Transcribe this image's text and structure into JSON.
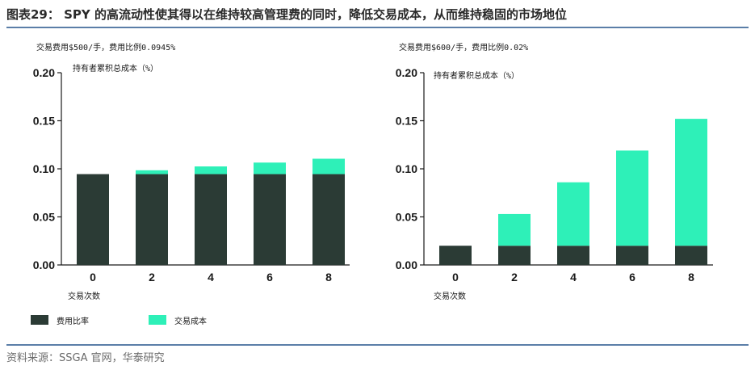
{
  "figure": {
    "title": "图表29： SPY 的高流动性使其得以在维持较高管理费的同时，降低交易成本，从而维持稳固的市场地位",
    "source": "资料来源：SSGA 官网，华泰研究"
  },
  "colors": {
    "fee": "#2b3b35",
    "cost": "#2ef0b8",
    "axis": "#1a1a1a",
    "rule": "#5b7ea8"
  },
  "legend": {
    "fee_label": "费用比率",
    "cost_label": "交易成本"
  },
  "chart_data": [
    {
      "type": "bar",
      "subtitle": "交易费用$500/手，费用比例0.0945%",
      "ylabel": "持有者累积总成本（%）",
      "xlabel": "交易次数",
      "categories": [
        "0",
        "2",
        "4",
        "6",
        "8"
      ],
      "ylim": [
        0,
        0.2
      ],
      "yticks": [
        "0.00",
        "0.05",
        "0.10",
        "0.15",
        "0.20"
      ],
      "stacked": true,
      "series": [
        {
          "name": "费用比率",
          "values": [
            0.0945,
            0.0945,
            0.0945,
            0.0945,
            0.0945
          ]
        },
        {
          "name": "交易成本",
          "values": [
            0,
            0.004,
            0.008,
            0.012,
            0.016
          ]
        }
      ]
    },
    {
      "type": "bar",
      "subtitle": "交易费用$600/手，费用比例0.02%",
      "ylabel": "持有者累积总成本（%）",
      "xlabel": "交易次数",
      "categories": [
        "0",
        "2",
        "4",
        "6",
        "8"
      ],
      "ylim": [
        0,
        0.2
      ],
      "yticks": [
        "0.00",
        "0.05",
        "0.10",
        "0.15",
        "0.20"
      ],
      "stacked": true,
      "series": [
        {
          "name": "费用比率",
          "values": [
            0.02,
            0.02,
            0.02,
            0.02,
            0.02
          ]
        },
        {
          "name": "交易成本",
          "values": [
            0,
            0.033,
            0.066,
            0.099,
            0.132
          ]
        }
      ]
    }
  ]
}
